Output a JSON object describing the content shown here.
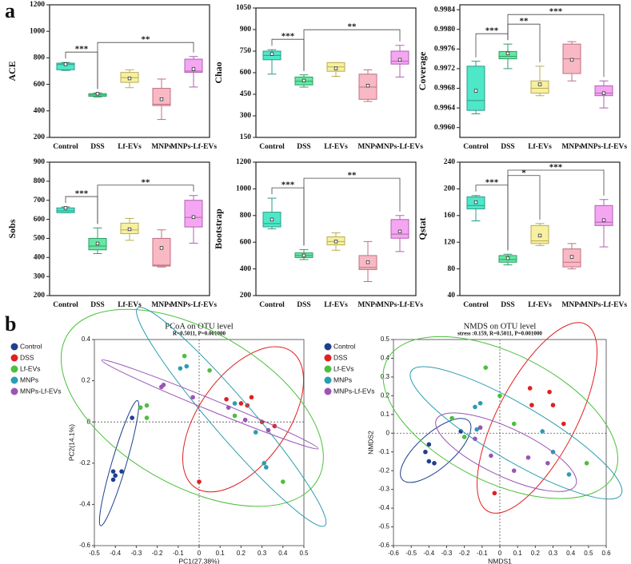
{
  "panel_labels": [
    "a",
    "b"
  ],
  "chart_data": [
    {
      "type": "box",
      "ylabel": "ACE",
      "categories": [
        "Control",
        "DSS",
        "Lf-EVs",
        "MNPs",
        "MNPs-Lf-EVs"
      ],
      "colors": [
        "#4ee8c8",
        "#66e8a4",
        "#f6f0a0",
        "#f8b8c4",
        "#f4a6f2"
      ],
      "edge_colors": [
        "#2a9c88",
        "#2f9e66",
        "#b8ac50",
        "#c07080",
        "#b060b0"
      ],
      "ylim": [
        200,
        1200
      ],
      "yticks": [
        200,
        400,
        600,
        800,
        1000,
        1200
      ],
      "min": [
        705,
        505,
        575,
        335,
        580
      ],
      "q1": [
        710,
        510,
        615,
        440,
        690
      ],
      "median": [
        750,
        520,
        650,
        450,
        700
      ],
      "q3": [
        760,
        530,
        690,
        570,
        790
      ],
      "max": [
        765,
        535,
        710,
        640,
        810
      ],
      "mean": [
        752,
        530,
        645,
        488,
        715
      ],
      "annotations": [
        {
          "label": "***",
          "from": "Control",
          "to": "DSS"
        },
        {
          "label": "**",
          "from": "DSS",
          "to": "MNPs-Lf-EVs"
        }
      ]
    },
    {
      "type": "box",
      "ylabel": "Chao",
      "categories": [
        "Control",
        "DSS",
        "Lf-EVs",
        "MNPs",
        "MNPs-Lf-EVs"
      ],
      "colors": [
        "#4ee8c8",
        "#66e8a4",
        "#f6f0a0",
        "#f8b8c4",
        "#f4a6f2"
      ],
      "edge_colors": [
        "#2a9c88",
        "#2f9e66",
        "#b8ac50",
        "#c07080",
        "#b060b0"
      ],
      "ylim": [
        150,
        1050
      ],
      "yticks": [
        150,
        300,
        450,
        600,
        750,
        900,
        1050
      ],
      "min": [
        590,
        500,
        575,
        400,
        570
      ],
      "q1": [
        690,
        515,
        610,
        415,
        660
      ],
      "median": [
        720,
        540,
        640,
        500,
        680
      ],
      "q3": [
        750,
        570,
        670,
        590,
        750
      ],
      "max": [
        760,
        585,
        670,
        620,
        790
      ],
      "mean": [
        730,
        545,
        630,
        510,
        690
      ],
      "annotations": [
        {
          "label": "***",
          "from": "Control",
          "to": "DSS"
        },
        {
          "label": "**",
          "from": "DSS",
          "to": "MNPs-Lf-EVs"
        }
      ]
    },
    {
      "type": "box",
      "ylabel": "Coverage",
      "categories": [
        "Control",
        "DSS",
        "Lf-EVs",
        "MNPs",
        "MNPs-Lf-EVs"
      ],
      "colors": [
        "#4ee8c8",
        "#66e8a4",
        "#f6f0a0",
        "#f8b8c4",
        "#f4a6f2"
      ],
      "edge_colors": [
        "#2a9c88",
        "#2f9e66",
        "#b8ac50",
        "#c07080",
        "#b060b0"
      ],
      "ylim": [
        0.9958,
        0.9985
      ],
      "yticks": [
        {
          "value": 0.996,
          "label": "0.9960"
        },
        {
          "value": 0.9964,
          "label": "0.9964"
        },
        {
          "value": 0.9968,
          "label": "0.9968"
        },
        {
          "value": 0.9972,
          "label": "0.9972"
        },
        {
          "value": 0.9976,
          "label": "0.9976"
        },
        {
          "value": 0.998,
          "label": "0.9980"
        },
        {
          "value": 0.9984,
          "label": "0.9984"
        }
      ],
      "min": [
        0.99628,
        0.9972,
        0.99665,
        0.99695,
        0.9964
      ],
      "q1": [
        0.99635,
        0.9974,
        0.9967,
        0.9971,
        0.99665
      ],
      "median": [
        0.99655,
        0.99745,
        0.9968,
        0.9974,
        0.9967
      ],
      "q3": [
        0.99725,
        0.99755,
        0.99695,
        0.9977,
        0.99685
      ],
      "max": [
        0.99735,
        0.9977,
        0.99725,
        0.99775,
        0.99695
      ],
      "mean": [
        0.99675,
        0.99751,
        0.99688,
        0.99738,
        0.9967
      ],
      "annotations": [
        {
          "label": "***",
          "from": "Control",
          "to": "DSS"
        },
        {
          "label": "**",
          "from": "DSS",
          "to": "Lf-EVs"
        },
        {
          "label": "***",
          "from": "DSS",
          "to": "MNPs-Lf-EVs"
        }
      ]
    },
    {
      "type": "box",
      "ylabel": "Sobs",
      "categories": [
        "Control",
        "DSS",
        "Lf-EVs",
        "MNPs",
        "MNPs-Lf-EVs"
      ],
      "colors": [
        "#4ee8c8",
        "#66e8a4",
        "#f6f0a0",
        "#f8b8c4",
        "#f4a6f2"
      ],
      "edge_colors": [
        "#2a9c88",
        "#2f9e66",
        "#b8ac50",
        "#c07080",
        "#b060b0"
      ],
      "ylim": [
        200,
        900
      ],
      "yticks": [
        200,
        300,
        400,
        500,
        600,
        700,
        800,
        900
      ],
      "min": [
        635,
        420,
        490,
        350,
        475
      ],
      "q1": [
        635,
        440,
        525,
        355,
        560
      ],
      "median": [
        645,
        460,
        545,
        360,
        610
      ],
      "q3": [
        660,
        500,
        580,
        500,
        700
      ],
      "max": [
        665,
        555,
        605,
        545,
        725
      ],
      "mean": [
        660,
        473,
        548,
        450,
        612
      ],
      "annotations": [
        {
          "label": "***",
          "from": "Control",
          "to": "DSS"
        },
        {
          "label": "**",
          "from": "DSS",
          "to": "MNPs-Lf-EVs"
        }
      ]
    },
    {
      "type": "box",
      "ylabel": "Bootstrap",
      "categories": [
        "Control",
        "DSS",
        "Lf-EVs",
        "MNPs",
        "MNPs-Lf-EVs"
      ],
      "colors": [
        "#4ee8c8",
        "#66e8a4",
        "#f6f0a0",
        "#f8b8c4",
        "#f4a6f2"
      ],
      "edge_colors": [
        "#2a9c88",
        "#2f9e66",
        "#b8ac50",
        "#c07080",
        "#b060b0"
      ],
      "ylim": [
        200,
        1200
      ],
      "yticks": [
        200,
        400,
        600,
        800,
        1000,
        1200
      ],
      "min": [
        700,
        470,
        540,
        305,
        530
      ],
      "q1": [
        715,
        485,
        580,
        395,
        630
      ],
      "median": [
        740,
        500,
        605,
        410,
        660
      ],
      "q3": [
        825,
        520,
        640,
        500,
        770
      ],
      "max": [
        930,
        545,
        670,
        605,
        800
      ],
      "mean": [
        770,
        500,
        605,
        450,
        680
      ],
      "annotations": [
        {
          "label": "***",
          "from": "Control",
          "to": "DSS"
        },
        {
          "label": "**",
          "from": "DSS",
          "to": "MNPs-Lf-EVs"
        }
      ]
    },
    {
      "type": "box",
      "ylabel": "Qstat",
      "categories": [
        "Control",
        "DSS",
        "Lf-EVs",
        "MNPs",
        "MNPs-Lf-EVs"
      ],
      "colors": [
        "#4ee8c8",
        "#66e8a4",
        "#f6f0a0",
        "#f8b8c4",
        "#f4a6f2"
      ],
      "edge_colors": [
        "#2a9c88",
        "#2f9e66",
        "#b8ac50",
        "#c07080",
        "#b060b0"
      ],
      "ylim": [
        40,
        240
      ],
      "yticks": [
        40,
        80,
        120,
        160,
        200,
        240
      ],
      "min": [
        152,
        86,
        115,
        80,
        113
      ],
      "q1": [
        170,
        90,
        118,
        83,
        145
      ],
      "median": [
        175,
        94,
        122,
        90,
        150
      ],
      "q3": [
        188,
        100,
        145,
        110,
        175
      ],
      "max": [
        190,
        102,
        148,
        118,
        184
      ],
      "mean": [
        180,
        96,
        130,
        98,
        153
      ],
      "annotations": [
        {
          "label": "***",
          "from": "Control",
          "to": "DSS"
        },
        {
          "label": "*",
          "from": "DSS",
          "to": "Lf-EVs"
        },
        {
          "label": "***",
          "from": "DSS",
          "to": "MNPs-Lf-EVs"
        }
      ]
    },
    {
      "type": "scatter",
      "title": "PCoA on OTU level",
      "subtitle": "R=0.5011, P=0.001000",
      "xlabel": "PC1(27.38%)",
      "ylabel": "PC2(14.1%)",
      "xlim": [
        -0.5,
        0.5
      ],
      "xticks": [
        -0.5,
        -0.4,
        -0.3,
        -0.2,
        -0.1,
        0,
        0.1,
        0.2,
        0.3,
        0.4,
        0.5
      ],
      "ylim": [
        -0.6,
        0.4
      ],
      "yticks": [
        -0.6,
        -0.4,
        -0.2,
        0,
        0.2,
        0.4
      ],
      "series": [
        {
          "name": "Control",
          "color": "#1f3f8f",
          "x": [
            -0.41,
            -0.37,
            -0.41,
            -0.4,
            -0.32
          ],
          "y": [
            -0.24,
            -0.24,
            -0.28,
            -0.26,
            0.02
          ]
        },
        {
          "name": "DSS",
          "color": "#e02020",
          "x": [
            0.13,
            0.2,
            0.23,
            0.25,
            0.36,
            0.3,
            0.0
          ],
          "y": [
            0.11,
            0.09,
            0.08,
            0.12,
            -0.02,
            0.0,
            -0.29
          ]
        },
        {
          "name": "Lf-EVs",
          "color": "#4cbf3c",
          "x": [
            -0.28,
            -0.25,
            -0.25,
            -0.07,
            0.05,
            0.17,
            0.4
          ],
          "y": [
            0.07,
            0.08,
            0.02,
            0.32,
            0.25,
            0.03,
            -0.29
          ]
        },
        {
          "name": "MNPs",
          "color": "#2a9db0",
          "x": [
            -0.06,
            -0.09,
            0.27,
            0.31,
            0.32,
            0.17
          ],
          "y": [
            0.27,
            0.26,
            -0.05,
            -0.2,
            -0.22,
            0.09
          ]
        },
        {
          "name": "MNPs-Lf-EVs",
          "color": "#9a55b5",
          "x": [
            -0.18,
            -0.17,
            -0.03,
            0.14,
            0.22,
            0.33
          ],
          "y": [
            0.17,
            0.18,
            0.12,
            0.07,
            0.01,
            -0.04
          ]
        }
      ]
    },
    {
      "type": "scatter",
      "title": "NMDS on OTU level",
      "subtitle": "stress :0.159, R=0.5011, P=0.001000",
      "xlabel": "NMDS1",
      "ylabel": "NMDS2",
      "xlim": [
        -0.6,
        0.6
      ],
      "xticks": [
        -0.6,
        -0.5,
        -0.4,
        -0.3,
        -0.2,
        -0.1,
        0,
        0.1,
        0.2,
        0.3,
        0.4,
        0.5,
        0.6
      ],
      "ylim": [
        -0.6,
        0.5
      ],
      "yticks": [
        -0.6,
        -0.5,
        -0.4,
        -0.3,
        -0.2,
        -0.1,
        0,
        0.1,
        0.2,
        0.3,
        0.4,
        0.5
      ],
      "series": [
        {
          "name": "Control",
          "color": "#1f3f8f",
          "x": [
            -0.4,
            -0.42,
            -0.4,
            -0.37,
            -0.22
          ],
          "y": [
            -0.06,
            -0.1,
            -0.15,
            -0.16,
            0.01
          ]
        },
        {
          "name": "DSS",
          "color": "#e02020",
          "x": [
            0.17,
            0.28,
            0.3,
            0.36,
            0.18,
            -0.03
          ],
          "y": [
            0.24,
            0.22,
            0.15,
            0.05,
            0.15,
            -0.32
          ]
        },
        {
          "name": "Lf-EVs",
          "color": "#4cbf3c",
          "x": [
            -0.08,
            -0.27,
            -0.2,
            0.0,
            0.08,
            0.49
          ],
          "y": [
            0.35,
            0.08,
            -0.02,
            0.2,
            0.05,
            -0.16
          ]
        },
        {
          "name": "MNPs",
          "color": "#2a9db0",
          "x": [
            -0.14,
            -0.11,
            0.24,
            0.3,
            0.39,
            -0.13
          ],
          "y": [
            0.14,
            0.16,
            0.01,
            -0.1,
            -0.22,
            0.02
          ]
        },
        {
          "name": "MNPs-Lf-EVs",
          "color": "#9a55b5",
          "x": [
            -0.11,
            -0.14,
            0.08,
            0.16,
            0.27,
            -0.05
          ],
          "y": [
            0.03,
            -0.03,
            -0.2,
            -0.13,
            -0.16,
            -0.12
          ]
        }
      ]
    }
  ]
}
